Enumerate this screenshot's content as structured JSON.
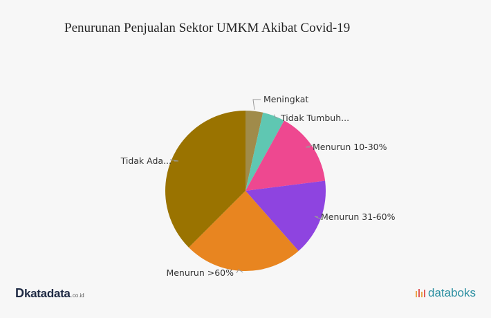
{
  "chart_data": {
    "type": "pie",
    "title": "Penurunan Penjualan Sektor UMKM Akibat Covid-19",
    "slices": [
      {
        "label": "Meningkat",
        "value": 3.5,
        "color": "#a08b4a"
      },
      {
        "label": "Tidak Tumbuh...",
        "value": 4.5,
        "color": "#5fc7b2"
      },
      {
        "label": "Menurun 10-30%",
        "value": 15.0,
        "color": "#ee4890"
      },
      {
        "label": "Menurun 31-60%",
        "value": 15.5,
        "color": "#8e44e0"
      },
      {
        "label": "Menurun >60%",
        "value": 24.0,
        "color": "#e88520"
      },
      {
        "label": "Tidak Ada...",
        "value": 37.5,
        "color": "#9a7300"
      }
    ]
  },
  "branding": {
    "left_logo_mark": "D",
    "left_logo_text": "katadata",
    "left_logo_suffix": ".co.id",
    "right_logo_text": "databoks"
  }
}
